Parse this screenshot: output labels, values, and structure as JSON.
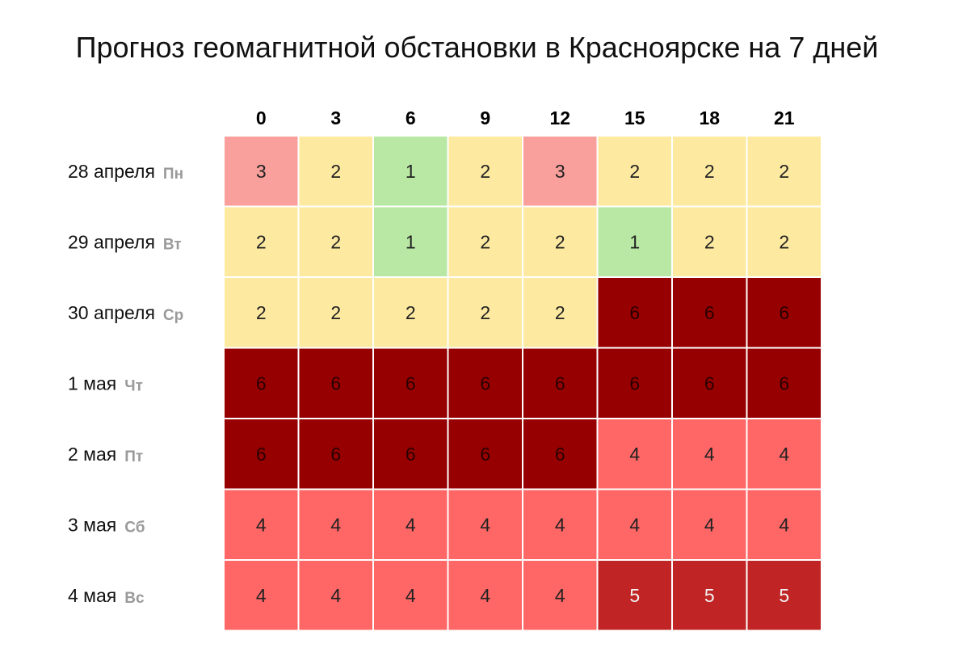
{
  "chart_data": {
    "type": "heatmap",
    "title": "Прогноз геомагнитной обстановки в Красноярске на 7 дней",
    "x": [
      "0",
      "3",
      "6",
      "9",
      "12",
      "15",
      "18",
      "21"
    ],
    "rows": [
      {
        "date": "28 апреля",
        "weekday": "Пн",
        "values": [
          3,
          2,
          1,
          2,
          3,
          2,
          2,
          2
        ]
      },
      {
        "date": "29 апреля",
        "weekday": "Вт",
        "values": [
          2,
          2,
          1,
          2,
          2,
          1,
          2,
          2
        ]
      },
      {
        "date": "30 апреля",
        "weekday": "Ср",
        "values": [
          2,
          2,
          2,
          2,
          2,
          6,
          6,
          6
        ]
      },
      {
        "date": "1 мая",
        "weekday": "Чт",
        "values": [
          6,
          6,
          6,
          6,
          6,
          6,
          6,
          6
        ]
      },
      {
        "date": "2 мая",
        "weekday": "Пт",
        "values": [
          6,
          6,
          6,
          6,
          6,
          4,
          4,
          4
        ]
      },
      {
        "date": "3 мая",
        "weekday": "Сб",
        "values": [
          4,
          4,
          4,
          4,
          4,
          4,
          4,
          4
        ]
      },
      {
        "date": "4 мая",
        "weekday": "Вс",
        "values": [
          4,
          4,
          4,
          4,
          4,
          5,
          5,
          5
        ]
      }
    ],
    "color_scale": {
      "1": "#b8e8a4",
      "2": "#fde9a0",
      "3": "#f9a09c",
      "4": "#ff6666",
      "5": "#c02424",
      "6": "#960000"
    },
    "text_colors": {
      "1": "#222222",
      "2": "#222222",
      "3": "#222222",
      "4": "#222222",
      "5": "#f2f2f2",
      "6": "#2a0000"
    }
  }
}
